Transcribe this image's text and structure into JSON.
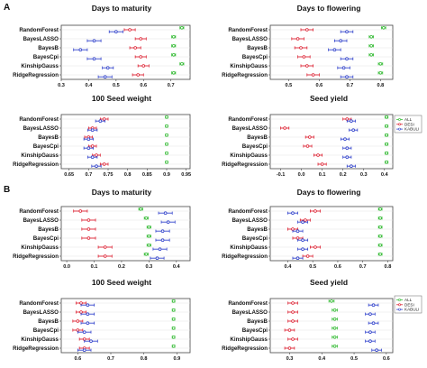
{
  "section_labels": [
    "A",
    "B"
  ],
  "legend": [
    {
      "label": "ALL",
      "color": "#33bb33"
    },
    {
      "label": "DESI",
      "color": "#dd2233"
    },
    {
      "label": "KABULI",
      "color": "#3344cc"
    }
  ],
  "chart_data": [
    {
      "type": "scatter",
      "title": "Days to maturity",
      "section": "A",
      "categories": [
        "RandomForest",
        "BayesLASSO",
        "BayesB",
        "BayesCpi",
        "KinshipGauss",
        "RidgeRegression"
      ],
      "xticks": [
        0.3,
        0.4,
        0.5,
        0.6,
        0.7
      ],
      "xlim": [
        0.3,
        0.77
      ],
      "series": [
        {
          "name": "ALL",
          "values": [
            0.74,
            0.71,
            0.71,
            0.71,
            0.74,
            0.71
          ],
          "err": [
            0.007,
            0.007,
            0.007,
            0.007,
            0.007,
            0.007
          ]
        },
        {
          "name": "DESI",
          "values": [
            0.55,
            0.59,
            0.57,
            0.59,
            0.6,
            0.58
          ],
          "err": [
            0.02,
            0.02,
            0.02,
            0.02,
            0.02,
            0.02
          ]
        },
        {
          "name": "KABULI",
          "values": [
            0.5,
            0.42,
            0.37,
            0.42,
            0.47,
            0.46
          ],
          "err": [
            0.025,
            0.025,
            0.025,
            0.025,
            0.02,
            0.025
          ]
        }
      ]
    },
    {
      "type": "scatter",
      "title": "Days to flowering",
      "section": "A",
      "categories": [
        "RandomForest",
        "BayesLASSO",
        "BayesB",
        "BayesCpi",
        "KinshipGauss",
        "RidgeRegression"
      ],
      "xticks": [
        0.5,
        0.6,
        0.7,
        0.8
      ],
      "xlim": [
        0.44,
        0.84
      ],
      "series": [
        {
          "name": "ALL",
          "values": [
            0.81,
            0.77,
            0.77,
            0.77,
            0.8,
            0.8
          ],
          "err": [
            0.007,
            0.007,
            0.007,
            0.007,
            0.007,
            0.007
          ]
        },
        {
          "name": "DESI",
          "values": [
            0.56,
            0.53,
            0.54,
            0.55,
            0.56,
            0.58
          ],
          "err": [
            0.02,
            0.02,
            0.02,
            0.02,
            0.02,
            0.02
          ]
        },
        {
          "name": "KABULI",
          "values": [
            0.69,
            0.67,
            0.65,
            0.69,
            0.68,
            0.69
          ],
          "err": [
            0.02,
            0.02,
            0.02,
            0.02,
            0.02,
            0.02
          ]
        }
      ]
    },
    {
      "type": "scatter",
      "title": "100 Seed weight",
      "section": "A",
      "categories": [
        "RandomForest",
        "BayesLASSO",
        "BayesB",
        "BayesCpi",
        "KinshipGauss",
        "RidgeRegression"
      ],
      "xticks": [
        0.65,
        0.7,
        0.75,
        0.8,
        0.85,
        0.9,
        0.95
      ],
      "xlim": [
        0.63,
        0.96
      ],
      "series": [
        {
          "name": "ALL",
          "values": [
            0.9,
            0.9,
            0.9,
            0.9,
            0.9,
            0.9
          ],
          "err": [
            0.003,
            0.003,
            0.003,
            0.003,
            0.003,
            0.003
          ]
        },
        {
          "name": "DESI",
          "values": [
            0.74,
            0.71,
            0.7,
            0.71,
            0.72,
            0.74
          ],
          "err": [
            0.01,
            0.01,
            0.01,
            0.01,
            0.01,
            0.01
          ]
        },
        {
          "name": "KABULI",
          "values": [
            0.73,
            0.71,
            0.7,
            0.7,
            0.71,
            0.72
          ],
          "err": [
            0.012,
            0.012,
            0.012,
            0.012,
            0.012,
            0.012
          ]
        }
      ]
    },
    {
      "type": "scatter",
      "title": "Seed yield",
      "section": "A",
      "categories": [
        "RandomForest",
        "BayesLASSO",
        "BayesB",
        "BayesCpi",
        "KinshipGauss",
        "RidgeRegression"
      ],
      "xticks": [
        -0.1,
        0.0,
        0.1,
        0.2,
        0.3,
        0.4
      ],
      "xlim": [
        -0.15,
        0.44
      ],
      "series": [
        {
          "name": "ALL",
          "values": [
            0.41,
            0.41,
            0.41,
            0.41,
            0.41,
            0.41
          ],
          "err": [
            0.007,
            0.007,
            0.007,
            0.007,
            0.007,
            0.007
          ]
        },
        {
          "name": "DESI",
          "values": [
            0.22,
            -0.08,
            0.04,
            0.03,
            0.08,
            0.1
          ],
          "err": [
            0.02,
            0.02,
            0.02,
            0.02,
            0.02,
            0.02
          ]
        },
        {
          "name": "KABULI",
          "values": [
            0.24,
            0.25,
            0.21,
            0.22,
            0.22,
            0.24
          ],
          "err": [
            0.02,
            0.02,
            0.02,
            0.02,
            0.02,
            0.02
          ]
        }
      ]
    },
    {
      "type": "scatter",
      "title": "Days to maturity",
      "section": "B",
      "categories": [
        "RandomForest",
        "BayesLASSO",
        "BayesB",
        "BayesCpi",
        "KinshipGauss",
        "RidgeRegression"
      ],
      "xticks": [
        0.0,
        0.1,
        0.2,
        0.3,
        0.4
      ],
      "xlim": [
        -0.02,
        0.45
      ],
      "series": [
        {
          "name": "ALL",
          "values": [
            0.27,
            0.29,
            0.3,
            0.3,
            0.3,
            0.29
          ],
          "err": [
            0.007,
            0.007,
            0.007,
            0.007,
            0.007,
            0.007
          ]
        },
        {
          "name": "DESI",
          "values": [
            0.05,
            0.08,
            0.08,
            0.08,
            0.14,
            0.14
          ],
          "err": [
            0.025,
            0.025,
            0.025,
            0.025,
            0.025,
            0.025
          ]
        },
        {
          "name": "KABULI",
          "values": [
            0.36,
            0.37,
            0.35,
            0.35,
            0.34,
            0.33
          ],
          "err": [
            0.025,
            0.025,
            0.025,
            0.025,
            0.025,
            0.025
          ]
        }
      ]
    },
    {
      "type": "scatter",
      "title": "Days to flowering",
      "section": "B",
      "categories": [
        "RandomForest",
        "BayesLASSO",
        "BayesB",
        "BayesCpi",
        "KinshipGauss",
        "RidgeRegression"
      ],
      "xticks": [
        0.4,
        0.5,
        0.6,
        0.7,
        0.8
      ],
      "xlim": [
        0.33,
        0.82
      ],
      "series": [
        {
          "name": "ALL",
          "values": [
            0.77,
            0.77,
            0.77,
            0.77,
            0.77,
            0.77
          ],
          "err": [
            0.007,
            0.007,
            0.007,
            0.007,
            0.007,
            0.007
          ]
        },
        {
          "name": "DESI",
          "values": [
            0.51,
            0.47,
            0.42,
            0.44,
            0.51,
            0.48
          ],
          "err": [
            0.02,
            0.02,
            0.02,
            0.02,
            0.02,
            0.02
          ]
        },
        {
          "name": "KABULI",
          "values": [
            0.42,
            0.46,
            0.44,
            0.46,
            0.46,
            0.44
          ],
          "err": [
            0.02,
            0.02,
            0.02,
            0.02,
            0.02,
            0.02
          ]
        }
      ]
    },
    {
      "type": "scatter",
      "title": "100 Seed weight",
      "section": "B",
      "categories": [
        "RandomForest",
        "BayesLASSO",
        "BayesB",
        "BayesCpi",
        "KinshipGauss",
        "RidgeRegression"
      ],
      "xticks": [
        0.6,
        0.7,
        0.8,
        0.9
      ],
      "xlim": [
        0.55,
        0.94
      ],
      "series": [
        {
          "name": "ALL",
          "values": [
            0.89,
            0.89,
            0.89,
            0.89,
            0.89,
            0.89
          ],
          "err": [
            0.004,
            0.004,
            0.004,
            0.004,
            0.004,
            0.004
          ]
        },
        {
          "name": "DESI",
          "values": [
            0.61,
            0.61,
            0.6,
            0.6,
            0.62,
            0.62
          ],
          "err": [
            0.015,
            0.015,
            0.015,
            0.015,
            0.015,
            0.015
          ]
        },
        {
          "name": "KABULI",
          "values": [
            0.63,
            0.63,
            0.63,
            0.62,
            0.64,
            0.62
          ],
          "err": [
            0.02,
            0.02,
            0.02,
            0.02,
            0.02,
            0.02
          ]
        }
      ]
    },
    {
      "type": "scatter",
      "title": "Seed yield",
      "section": "B",
      "categories": [
        "RandomForest",
        "BayesLASSO",
        "BayesB",
        "BayesCpi",
        "KinshipGauss",
        "RidgeRegression"
      ],
      "xticks": [
        0.3,
        0.4,
        0.5,
        0.6
      ],
      "xlim": [
        0.24,
        0.62
      ],
      "series": [
        {
          "name": "ALL",
          "values": [
            0.43,
            0.44,
            0.44,
            0.44,
            0.44,
            0.44
          ],
          "err": [
            0.008,
            0.008,
            0.008,
            0.008,
            0.008,
            0.008
          ]
        },
        {
          "name": "DESI",
          "values": [
            0.31,
            0.31,
            0.31,
            0.3,
            0.31,
            0.3
          ],
          "err": [
            0.015,
            0.015,
            0.015,
            0.015,
            0.015,
            0.015
          ]
        },
        {
          "name": "KABULI",
          "values": [
            0.56,
            0.55,
            0.56,
            0.55,
            0.55,
            0.57
          ],
          "err": [
            0.015,
            0.015,
            0.015,
            0.015,
            0.015,
            0.015
          ]
        }
      ]
    }
  ]
}
